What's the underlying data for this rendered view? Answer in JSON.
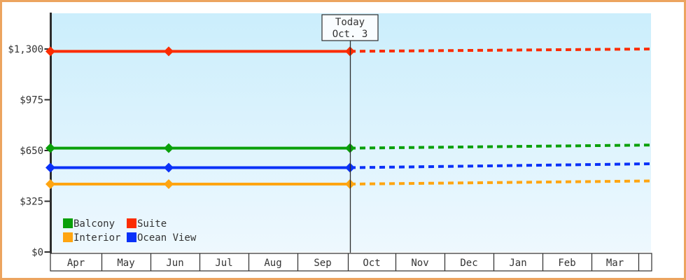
{
  "chart_data": {
    "type": "line",
    "title": "",
    "months": [
      "Apr",
      "May",
      "Jun",
      "Jul",
      "Aug",
      "Sep",
      "Oct",
      "Nov",
      "Dec",
      "Jan",
      "Feb",
      "Mar"
    ],
    "y_axis": {
      "tick_labels": [
        "$0",
        "$325",
        "$650",
        "$975",
        "$1,300"
      ],
      "tick_values": [
        0,
        325,
        650,
        975,
        1300
      ],
      "ylim": [
        0,
        1520
      ],
      "grid": false
    },
    "today_annotation": {
      "line1": "Today",
      "line2": "Oct. 3"
    },
    "series": [
      {
        "name": "Suite",
        "color": "#fb2c01",
        "current_price": 1285,
        "forecast_end_price": 1300
      },
      {
        "name": "Balcony",
        "color": "#0aa00a",
        "current_price": 665,
        "forecast_end_price": 685
      },
      {
        "name": "Ocean View",
        "color": "#0a31f8",
        "current_price": 540,
        "forecast_end_price": 565
      },
      {
        "name": "Interior",
        "color": "#ffa511",
        "current_price": 435,
        "forecast_end_price": 455
      }
    ],
    "actual_style": "solid",
    "forecast_style": "dotted",
    "marker_months_from_apr": [
      0,
      2.4,
      6.07
    ],
    "legend": {
      "items": [
        "Balcony",
        "Suite",
        "Interior",
        "Ocean View"
      ],
      "position": "bottom-left-inside-plot"
    }
  },
  "colors": {
    "frame_border": "#eca45f",
    "plot_bg_top": "#cbeefc",
    "plot_bg_bottom": "#eef8fe",
    "axis": "#2d2d2d",
    "text": "#333333",
    "today_box_bg": "#f9fdff",
    "month_row_bg": "#ffffff"
  }
}
